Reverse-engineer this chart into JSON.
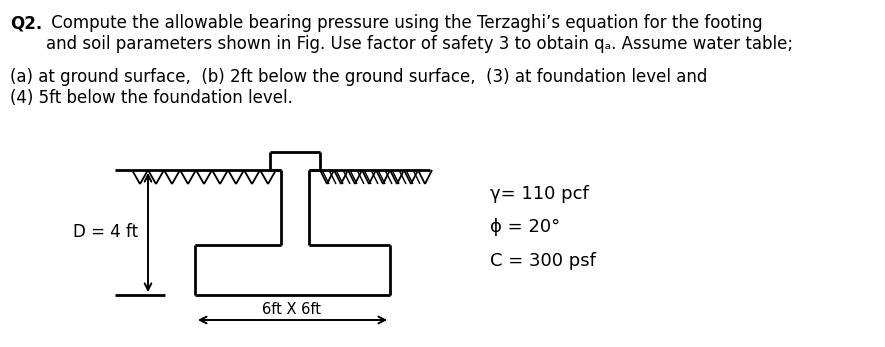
{
  "title_bold": "Q2.",
  "title_text": " Compute the allowable bearing pressure using the Terzaghi’s equation for the footing\nand soil parameters shown in Fig. Use factor of safety 3 to obtain qₐ. Assume water table;",
  "subtitle": "(a) at ground surface,  (b) 2ft below the ground surface,  (3) at foundation level and\n(4) 5ft below the foundation level.",
  "param_gamma": "γ= 110 pcf",
  "param_phi": "ϕ = 20°",
  "param_c": "C = 300 psf",
  "label_D": "D = 4 ft",
  "label_width": "6ft X 6ft",
  "bg_color": "#ffffff",
  "text_color": "#000000"
}
